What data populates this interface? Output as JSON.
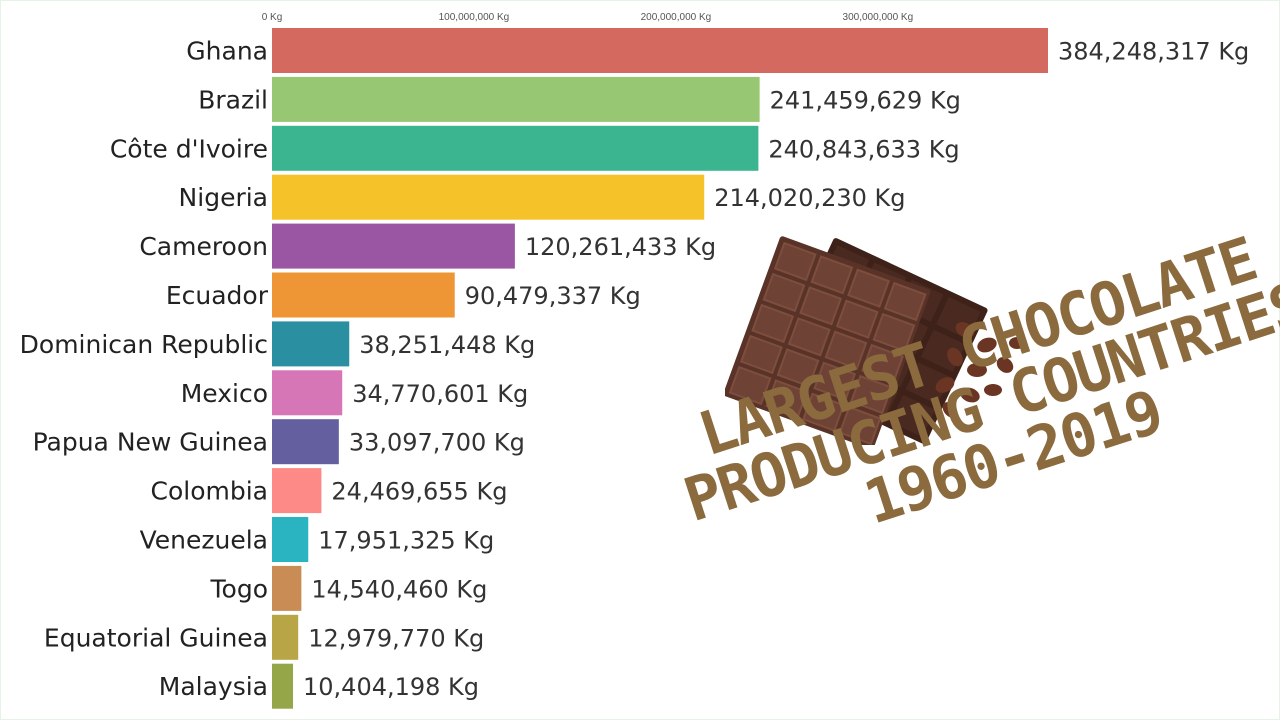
{
  "chart_data": {
    "type": "bar",
    "orientation": "horizontal",
    "unit": "Kg",
    "xlim": [
      0,
      384248317
    ],
    "ticks": [
      {
        "value": 0,
        "label": "0 Kg"
      },
      {
        "value": 100000000,
        "label": "100,000,000 Kg"
      },
      {
        "value": 200000000,
        "label": "200,000,000 Kg"
      },
      {
        "value": 300000000,
        "label": "300,000,000 Kg"
      }
    ],
    "categories": [
      "Ghana",
      "Brazil",
      "Côte d'Ivoire",
      "Nigeria",
      "Cameroon",
      "Ecuador",
      "Dominican Republic",
      "Mexico",
      "Papua New Guinea",
      "Colombia",
      "Venezuela",
      "Togo",
      "Equatorial Guinea",
      "Malaysia"
    ],
    "values": [
      384248317,
      241459629,
      240843633,
      214020230,
      120261433,
      90479337,
      38251448,
      34770601,
      33097700,
      24469655,
      17951325,
      14540460,
      12979770,
      10404198
    ],
    "value_labels": [
      "384,248,317 Kg",
      "241,459,629 Kg",
      "240,843,633 Kg",
      "214,020,230 Kg",
      "120,261,433 Kg",
      "90,479,337 Kg",
      "38,251,448 Kg",
      "34,770,601 Kg",
      "33,097,700 Kg",
      "24,469,655 Kg",
      "17,951,325 Kg",
      "14,540,460 Kg",
      "12,979,770 Kg",
      "10,404,198 Kg"
    ],
    "colors": [
      "#d4695f",
      "#98c774",
      "#3bb58f",
      "#f5c22a",
      "#9a55a3",
      "#ee9536",
      "#2a8fa0",
      "#d676b6",
      "#6460a0",
      "#fd8a86",
      "#2ab4c2",
      "#c98c55",
      "#b8a545",
      "#94a648"
    ],
    "grid": false
  },
  "overlay": {
    "title_lines": [
      "LARGEST CHOCOLATE",
      "PRODUCING COUNTRIES",
      "1960-2019"
    ],
    "title_color": "#8b6a3e",
    "image": "chocolate-bar-with-cocoa-beans"
  }
}
